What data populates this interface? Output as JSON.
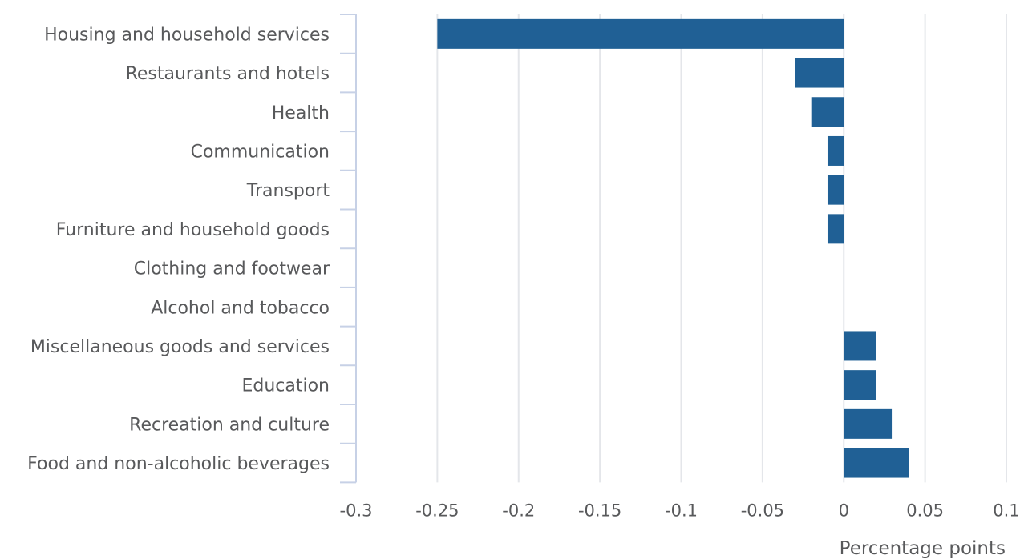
{
  "chart_data": {
    "type": "bar",
    "orientation": "horizontal",
    "categories": [
      "Housing and household services",
      "Restaurants and hotels",
      "Health",
      "Communication",
      "Transport",
      "Furniture and household goods",
      "Clothing and footwear",
      "Alcohol and tobacco",
      "Miscellaneous goods and services",
      "Education",
      "Recreation and culture",
      "Food and non-alcoholic beverages"
    ],
    "values": [
      -0.25,
      -0.03,
      -0.02,
      -0.01,
      -0.01,
      -0.01,
      0,
      0,
      0.02,
      0.02,
      0.03,
      0.04
    ],
    "xlabel": "Percentage points",
    "ylabel": "",
    "xlim": [
      -0.3,
      0.1
    ],
    "ticks": [
      -0.3,
      -0.25,
      -0.2,
      -0.15,
      -0.1,
      -0.05,
      0,
      0.05,
      0.1
    ],
    "tick_labels": [
      "-0.3",
      "-0.25",
      "-0.2",
      "-0.15",
      "-0.1",
      "-0.05",
      "0",
      "0.05",
      "0.1"
    ],
    "grid": true,
    "colors": {
      "bar": "#206095",
      "grid": "#e4e6ea",
      "axis": "#c7d1e6",
      "text": "#58595b"
    }
  }
}
